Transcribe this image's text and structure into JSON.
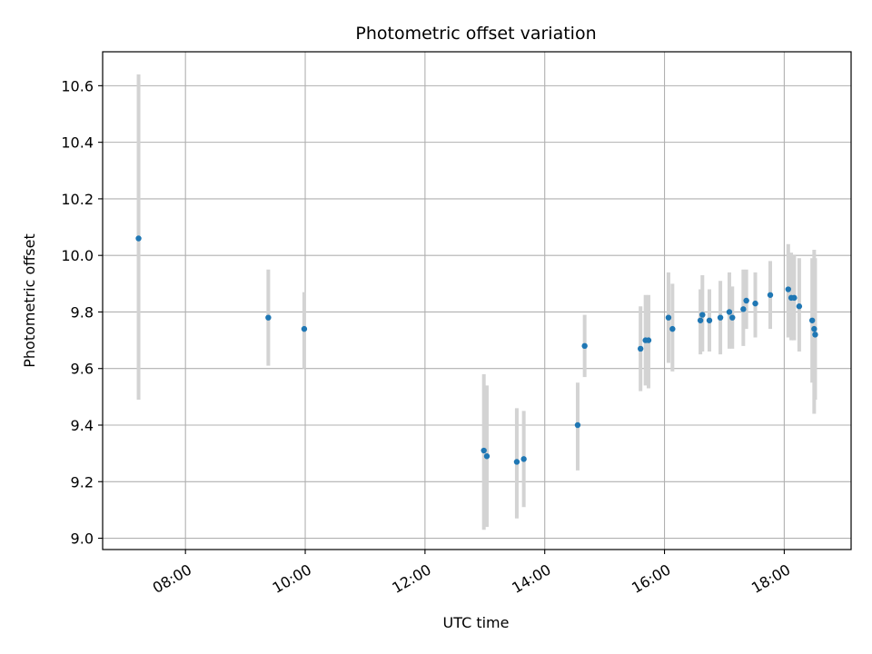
{
  "chart_data": {
    "type": "scatter",
    "title": "Photometric offset variation",
    "xlabel": "UTC time",
    "ylabel": "Photometric offset",
    "x_tick_labels": [
      "08:00",
      "10:00",
      "12:00",
      "14:00",
      "16:00",
      "18:00"
    ],
    "x_ticks_hours": [
      8,
      10,
      12,
      14,
      16,
      18
    ],
    "y_tick_labels": [
      "9.0",
      "9.2",
      "9.4",
      "9.6",
      "9.8",
      "10.0",
      "10.2",
      "10.4",
      "10.6"
    ],
    "y_ticks": [
      9.0,
      9.2,
      9.4,
      9.6,
      9.8,
      10.0,
      10.2,
      10.4,
      10.6
    ],
    "xlim": [
      "06:37",
      "19:07"
    ],
    "ylim": [
      8.96,
      10.72
    ],
    "grid": true,
    "marker_color": "#1f77b4",
    "errorbar_color": "#d3d3d3",
    "points": [
      {
        "time": "07:13",
        "y": 10.06,
        "ylow": 9.49,
        "yhigh": 10.64
      },
      {
        "time": "09:23",
        "y": 9.78,
        "ylow": 9.61,
        "yhigh": 9.95
      },
      {
        "time": "09:59",
        "y": 9.74,
        "ylow": 9.6,
        "yhigh": 9.87
      },
      {
        "time": "12:59",
        "y": 9.31,
        "ylow": 9.03,
        "yhigh": 9.58
      },
      {
        "time": "13:02",
        "y": 9.29,
        "ylow": 9.04,
        "yhigh": 9.54
      },
      {
        "time": "13:32",
        "y": 9.27,
        "ylow": 9.07,
        "yhigh": 9.46
      },
      {
        "time": "13:39",
        "y": 9.28,
        "ylow": 9.11,
        "yhigh": 9.45
      },
      {
        "time": "14:33",
        "y": 9.4,
        "ylow": 9.24,
        "yhigh": 9.55
      },
      {
        "time": "14:40",
        "y": 9.68,
        "ylow": 9.57,
        "yhigh": 9.79
      },
      {
        "time": "15:36",
        "y": 9.67,
        "ylow": 9.52,
        "yhigh": 9.82
      },
      {
        "time": "15:41",
        "y": 9.7,
        "ylow": 9.54,
        "yhigh": 9.86
      },
      {
        "time": "15:44",
        "y": 9.7,
        "ylow": 9.53,
        "yhigh": 9.86
      },
      {
        "time": "16:04",
        "y": 9.78,
        "ylow": 9.62,
        "yhigh": 9.94
      },
      {
        "time": "16:08",
        "y": 9.74,
        "ylow": 9.59,
        "yhigh": 9.9
      },
      {
        "time": "16:36",
        "y": 9.77,
        "ylow": 9.65,
        "yhigh": 9.88
      },
      {
        "time": "16:38",
        "y": 9.79,
        "ylow": 9.66,
        "yhigh": 9.93
      },
      {
        "time": "16:45",
        "y": 9.77,
        "ylow": 9.66,
        "yhigh": 9.88
      },
      {
        "time": "16:56",
        "y": 9.78,
        "ylow": 9.65,
        "yhigh": 9.91
      },
      {
        "time": "17:05",
        "y": 9.8,
        "ylow": 9.67,
        "yhigh": 9.94
      },
      {
        "time": "17:08",
        "y": 9.78,
        "ylow": 9.67,
        "yhigh": 9.89
      },
      {
        "time": "17:19",
        "y": 9.81,
        "ylow": 9.68,
        "yhigh": 9.95
      },
      {
        "time": "17:22",
        "y": 9.84,
        "ylow": 9.74,
        "yhigh": 9.95
      },
      {
        "time": "17:31",
        "y": 9.83,
        "ylow": 9.71,
        "yhigh": 9.94
      },
      {
        "time": "17:46",
        "y": 9.86,
        "ylow": 9.74,
        "yhigh": 9.98
      },
      {
        "time": "18:04",
        "y": 9.88,
        "ylow": 9.71,
        "yhigh": 10.04
      },
      {
        "time": "18:07",
        "y": 9.85,
        "ylow": 9.7,
        "yhigh": 10.01
      },
      {
        "time": "18:10",
        "y": 9.85,
        "ylow": 9.7,
        "yhigh": 10.0
      },
      {
        "time": "18:15",
        "y": 9.82,
        "ylow": 9.66,
        "yhigh": 9.99
      },
      {
        "time": "18:28",
        "y": 9.77,
        "ylow": 9.55,
        "yhigh": 9.99
      },
      {
        "time": "18:30",
        "y": 9.74,
        "ylow": 9.44,
        "yhigh": 10.02
      },
      {
        "time": "18:31",
        "y": 9.72,
        "ylow": 9.49,
        "yhigh": 9.99
      }
    ]
  }
}
